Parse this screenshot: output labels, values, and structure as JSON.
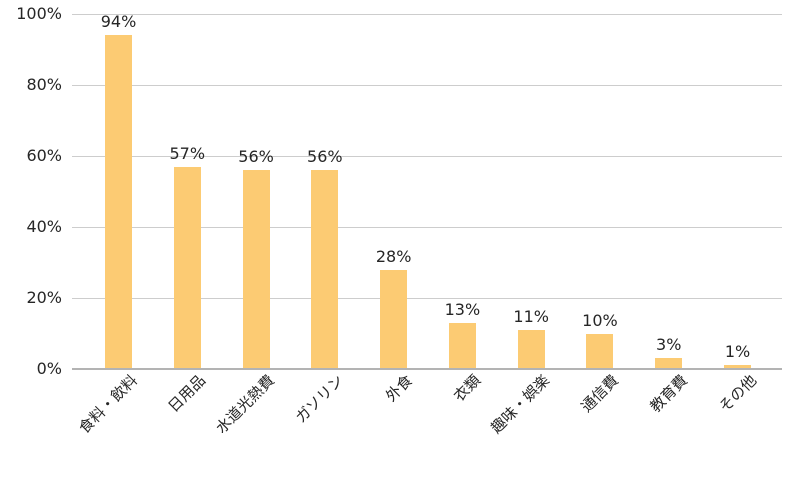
{
  "chart_data": {
    "type": "bar",
    "title": "",
    "xlabel": "",
    "ylabel": "",
    "categories": [
      "食料・飲料",
      "日用品",
      "水道光熱費",
      "ガソリン",
      "外食",
      "衣類",
      "趣味・娯楽",
      "通信費",
      "教育費",
      "その他"
    ],
    "values": [
      94,
      57,
      56,
      56,
      28,
      13,
      11,
      10,
      3,
      1
    ],
    "value_labels": [
      "94%",
      "57%",
      "56%",
      "56%",
      "28%",
      "13%",
      "11%",
      "10%",
      "3%",
      "1%"
    ],
    "ylim": [
      0,
      100
    ],
    "y_ticks": [
      {
        "value": 0,
        "label": "0%"
      },
      {
        "value": 20,
        "label": "20%"
      },
      {
        "value": 40,
        "label": "40%"
      },
      {
        "value": 60,
        "label": "60%"
      },
      {
        "value": 80,
        "label": "80%"
      },
      {
        "value": 100,
        "label": "100%"
      }
    ],
    "grid": true,
    "legend": false,
    "colors": {
      "bar": "#FCCB73",
      "gridline": "#CDCDCD",
      "axis": "#B3B3B3",
      "text": "#262626",
      "background": "#FFFFFF"
    }
  }
}
